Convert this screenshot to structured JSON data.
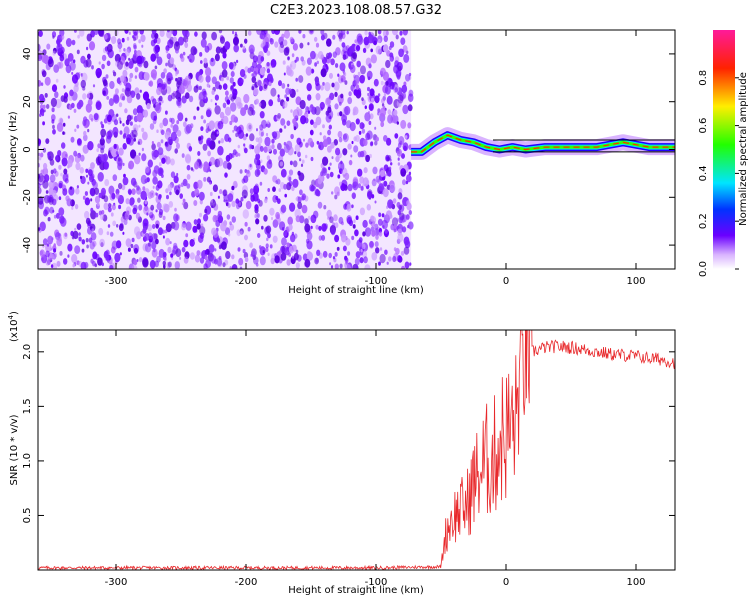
{
  "title": "C2E3.2023.108.08.57.G32",
  "chart_data": [
    {
      "type": "heatmap",
      "xlabel": "Height of straight line (km)",
      "ylabel": "Frequency (Hz)",
      "xlim": [
        -360,
        130
      ],
      "ylim": [
        -50,
        50
      ],
      "xticks": [
        -300,
        -200,
        -100,
        0,
        100
      ],
      "yticks": [
        -40,
        -20,
        0,
        20,
        40
      ],
      "noise_region_x": [
        -360,
        -73
      ],
      "signal_track": {
        "x": [
          -73,
          -65,
          -55,
          -45,
          -35,
          -25,
          -15,
          -5,
          5,
          15,
          30,
          50,
          70,
          80,
          90,
          100,
          110,
          130
        ],
        "y": [
          -1,
          -1,
          3,
          6,
          4,
          3,
          1,
          0,
          1,
          0,
          1,
          1,
          1,
          2,
          3,
          2,
          1,
          1
        ]
      },
      "colorbar": {
        "label": "Normalized spectral amplitude",
        "range": [
          0,
          1
        ],
        "ticks": [
          "0.0",
          "0.2",
          "0.4",
          "0.6",
          "0.8"
        ]
      }
    },
    {
      "type": "line",
      "xlabel": "Height of straight line (km)",
      "ylabel": "SNR (10 * v/v)",
      "scale_label": "(x10",
      "scale_exp": "4",
      "scale_close": ")",
      "xlim": [
        -360,
        130
      ],
      "ylim": [
        0,
        2.2
      ],
      "xticks": [
        -300,
        -200,
        -100,
        0,
        100
      ],
      "yticks": [
        "0.5",
        "1.0",
        "1.5",
        "2.0"
      ],
      "color": "#e8282b",
      "series": [
        {
          "x": [
            -360,
            -100,
            -50,
            -47,
            -43,
            -40,
            -35,
            -30,
            -25,
            -20,
            -15,
            -10,
            -5,
            0,
            5,
            8,
            10,
            12,
            15,
            18,
            20,
            25,
            30,
            40,
            50,
            60,
            70,
            80,
            90,
            100,
            110,
            120,
            130
          ],
          "y": [
            0.02,
            0.02,
            0.03,
            0.3,
            0.45,
            0.5,
            0.55,
            0.6,
            0.8,
            0.9,
            1.0,
            1.0,
            1.2,
            1.25,
            1.3,
            1.4,
            1.7,
            1.85,
            1.95,
            1.98,
            2.0,
            2.02,
            2.04,
            2.05,
            2.04,
            2.02,
            2.0,
            1.98,
            1.97,
            1.96,
            1.94,
            1.93,
            1.9
          ]
        }
      ]
    }
  ]
}
